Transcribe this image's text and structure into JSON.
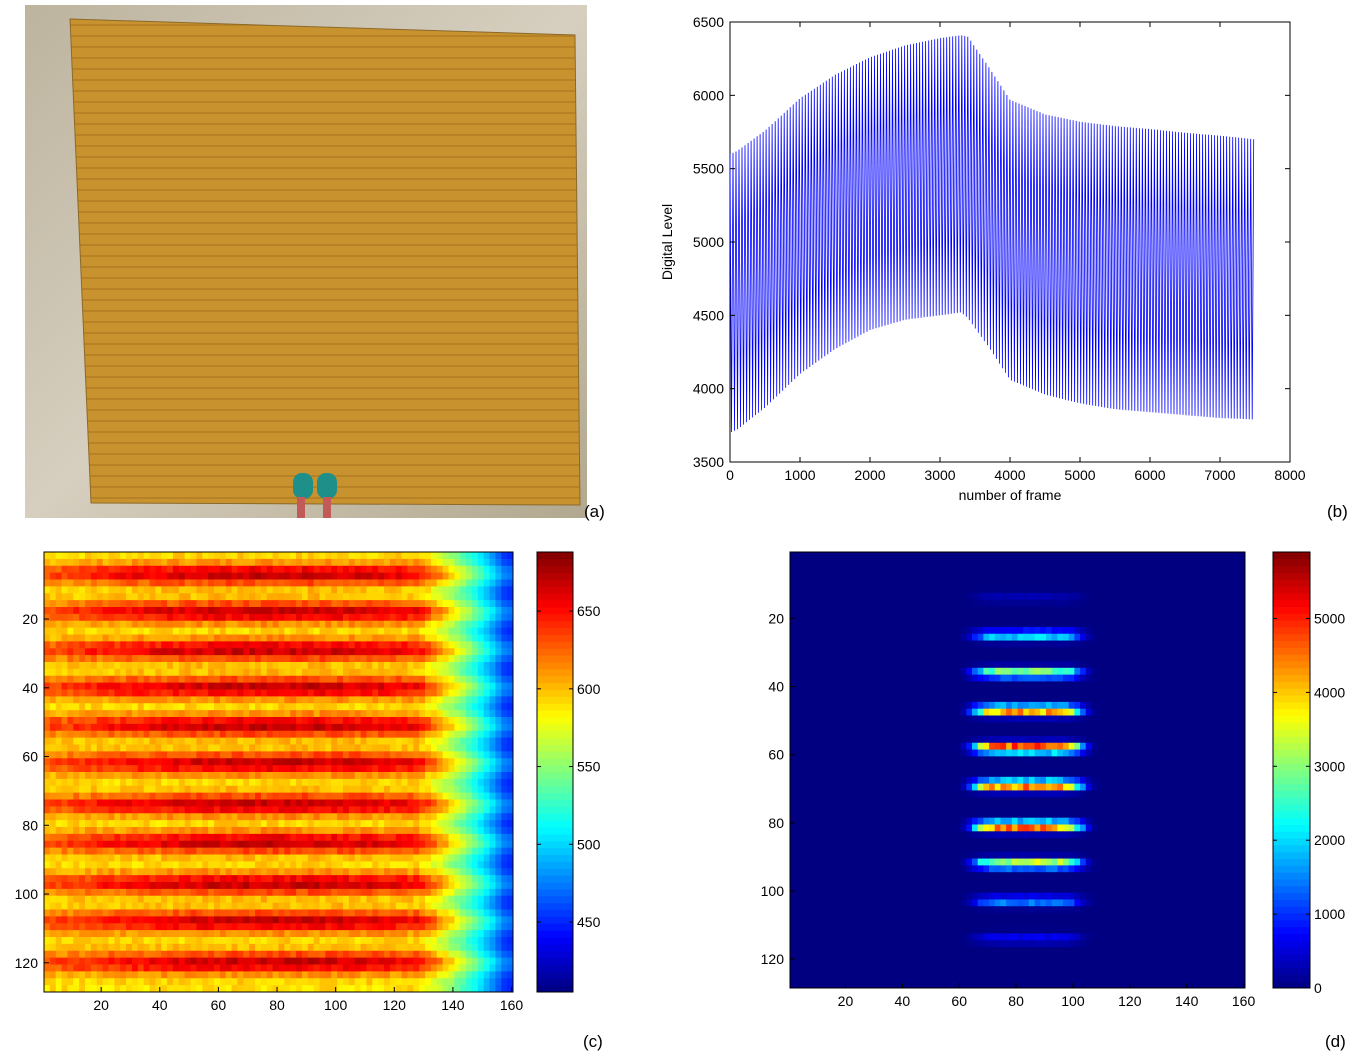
{
  "panels": {
    "a": {
      "label": "(a)"
    },
    "b": {
      "label": "(b)"
    },
    "c": {
      "label": "(c)"
    },
    "d": {
      "label": "(d)"
    }
  },
  "colors": {
    "line": "#0000ff",
    "film": "#c8922e",
    "film_dark": "#a9741f",
    "background_sand": "#cfc6b4",
    "connector": "#1f8f8a"
  },
  "chart_data": [
    {
      "id": "b",
      "type": "line",
      "title": "",
      "xlabel": "number of frame",
      "ylabel": "Digital Level",
      "xlim": [
        0,
        8000
      ],
      "ylim": [
        3500,
        6500
      ],
      "xticks": [
        "0",
        "1000",
        "2000",
        "3000",
        "4000",
        "5000",
        "6000",
        "7000",
        "8000"
      ],
      "yticks": [
        "3500",
        "4000",
        "4500",
        "5000",
        "5500",
        "6000",
        "6500"
      ],
      "grid": false,
      "series": [
        {
          "x": [
            0,
            100,
            500,
            1000,
            1500,
            2000,
            2500,
            3000,
            3300,
            3400,
            3700,
            4000,
            4500,
            5000,
            5500,
            6000,
            6500,
            7000,
            7500
          ],
          "y_upper": [
            5600,
            5620,
            5760,
            5980,
            6140,
            6260,
            6340,
            6390,
            6410,
            6400,
            6190,
            5970,
            5870,
            5820,
            5790,
            5770,
            5745,
            5725,
            5700
          ],
          "y_lower": [
            3700,
            3720,
            3870,
            4100,
            4270,
            4400,
            4470,
            4500,
            4520,
            4480,
            4280,
            4060,
            3960,
            3900,
            3860,
            3840,
            3820,
            3800,
            3790
          ]
        }
      ]
    },
    {
      "id": "c",
      "type": "heatmap",
      "title": "",
      "xlim": [
        1,
        160
      ],
      "ylim": [
        1,
        128
      ],
      "xticks": [
        "20",
        "40",
        "60",
        "80",
        "100",
        "120",
        "140",
        "160"
      ],
      "yticks": [
        "20",
        "40",
        "60",
        "80",
        "100",
        "120"
      ],
      "colorbar": {
        "range": [
          405,
          688
        ],
        "ticks": [
          "450",
          "500",
          "550",
          "600",
          "650"
        ]
      },
      "colormap": "jet",
      "bands_y": [
        7,
        18,
        29,
        40,
        51,
        62,
        74,
        85,
        97,
        108,
        120
      ],
      "description_values": {
        "band_peak": 650,
        "gap_level": 590,
        "right_edge_level": 450
      }
    },
    {
      "id": "d",
      "type": "heatmap",
      "title": "",
      "xlim": [
        1,
        160
      ],
      "ylim": [
        1,
        128
      ],
      "xticks": [
        "20",
        "40",
        "60",
        "80",
        "100",
        "120",
        "140",
        "160"
      ],
      "yticks": [
        "20",
        "40",
        "60",
        "80",
        "100",
        "120"
      ],
      "colorbar": {
        "range": [
          0,
          5900
        ],
        "ticks": [
          "0",
          "1000",
          "2000",
          "3000",
          "4000",
          "5000"
        ]
      },
      "colormap": "jet",
      "stripes": [
        {
          "y": 14,
          "peak": 300
        },
        {
          "y": 25,
          "peak": 2200
        },
        {
          "y": 36,
          "peak": 3200
        },
        {
          "y": 47,
          "peak": 4700
        },
        {
          "y": 58,
          "peak": 5400
        },
        {
          "y": 69,
          "peak": 5000
        },
        {
          "y": 81,
          "peak": 5000
        },
        {
          "y": 92,
          "peak": 3600
        },
        {
          "y": 103,
          "peak": 1600
        },
        {
          "y": 114,
          "peak": 700
        }
      ]
    }
  ]
}
